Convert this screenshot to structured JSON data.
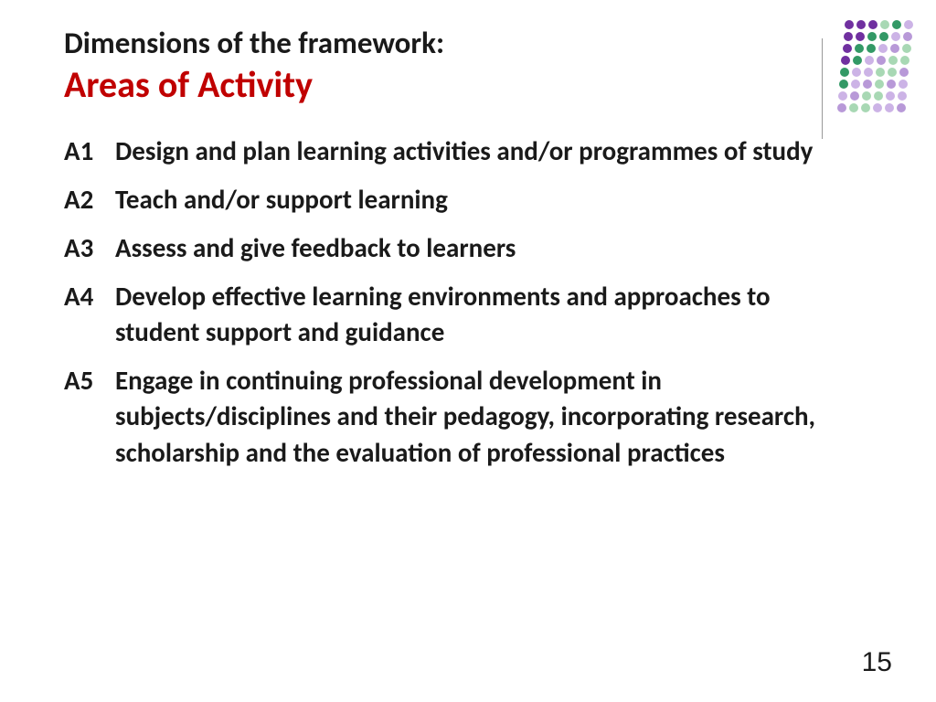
{
  "header": {
    "line1": "Dimensions of the framework:",
    "line2": "Areas of Activity"
  },
  "items": [
    {
      "code": "A1",
      "text": "Design and plan learning activities and/or programmes of study"
    },
    {
      "code": "A2",
      "text": "Teach and/or support learning"
    },
    {
      "code": "A3",
      "text": "Assess and give feedback to learners"
    },
    {
      "code": "A4",
      "text": "Develop effective learning environments and approaches to student support and guidance"
    },
    {
      "code": "A5",
      "text": "Engage in continuing professional development in subjects/disciplines and their pedagogy, incorporating research, scholarship and the evaluation of professional practices"
    }
  ],
  "pageNumber": "15",
  "colors": {
    "title1": "#1a1a1a",
    "title2": "#c00000",
    "body": "#1a1a1a",
    "background": "#ffffff"
  },
  "decoration": {
    "purple_dark": "#7030a0",
    "purple_light": "#b899d8",
    "green_dark": "#339966",
    "green_light": "#a8d8b4",
    "lilac": "#ccb3e6"
  }
}
